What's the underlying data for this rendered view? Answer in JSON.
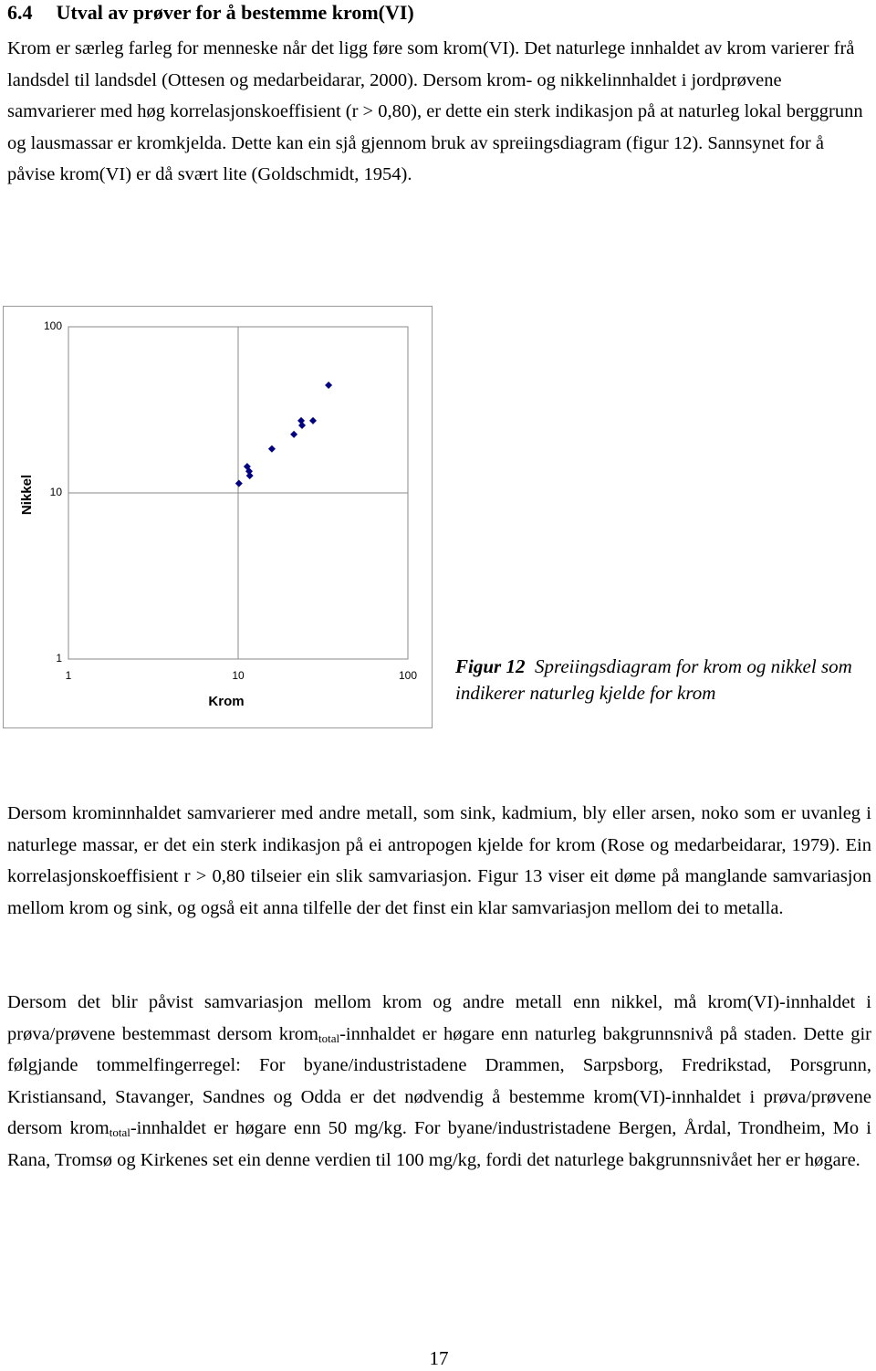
{
  "heading": {
    "number": "6.4",
    "title": "Utval av prøver for å bestemme krom(VI)"
  },
  "paragraphs": [
    [
      "Krom er særleg farleg for menneske når det ligg føre som krom(VI). Det naturlege innhaldet av krom varierer frå landsdel til landsdel (Ottesen og medarbeidarar, 2000). Dersom krom- og nikkelinnhaldet i jordprøvene samvarierer med høg korrelasjonskoeffisient (r > 0,80), er dette ein sterk indikasjon på at naturleg lokal berggrunn og lausmassar er kromkjelda. Dette kan ein sjå gjennom bruk av spreiingsdiagram (figur 12). Sannsynet for å påvise krom(VI) er då svært lite (Goldschmidt, 1954)."
    ],
    [
      "Dersom krominnhaldet samvarierer med andre metall, som sink, kadmium, bly eller arsen, noko som er uvanleg i naturlege massar, er det ein sterk indikasjon på ei antropogen kjelde for krom (Rose og medarbeidarar, 1979). Ein korrelasjonskoeffisient r > 0,80 tilseier ein slik samvariasjon. Figur 13 viser eit døme på manglande samvariasjon mellom krom og sink, og også eit anna tilfelle der det finst ein klar samvariasjon mellom dei to metalla."
    ],
    [
      "Dersom det blir påvist samvariasjon mellom krom og andre metall enn nikkel, må krom(VI)-innhaldet i prøva/prøvene bestemmast dersom krom",
      "total",
      "-innhaldet er høgare enn naturleg bakgrunnsnivå på staden. Dette gir følgjande tommelfingerregel: For byane/industristadene Drammen, Sarpsborg, Fredrikstad, Porsgrunn, Kristiansand, Stavanger, Sandnes og Odda er det nødvendig å bestemme krom(VI)-innhaldet i prøva/prøvene dersom krom",
      "total",
      "-innhaldet er høgare enn 50 mg/kg. For byane/industristadene Bergen, Årdal, Trondheim, Mo i Rana, Tromsø og Kirkenes set ein denne verdien til 100 mg/kg, fordi det naturlege bakgrunnsnivået her er høgare."
    ]
  ],
  "chart_data": {
    "type": "scatter",
    "x_label": "Krom",
    "y_label": "Nikkel",
    "log_x": true,
    "log_y": true,
    "grid": true,
    "xlim": [
      1,
      100
    ],
    "ylim": [
      1,
      100
    ],
    "xticks": [
      1,
      10,
      100
    ],
    "yticks": [
      1,
      10,
      100
    ],
    "color": "#000080",
    "x": [
      10.1,
      11.3,
      11.7,
      11.6,
      15.8,
      21.3,
      23.5,
      23.8,
      27.6,
      34.1
    ],
    "values": [
      11.4,
      14.4,
      12.7,
      13.5,
      18.4,
      22.5,
      27.2,
      25.5,
      27.2,
      44.5
    ]
  },
  "caption": {
    "label": "Figur 12",
    "text": "Spreiingsdiagram for krom og nikkel som indikerer naturleg kjelde for krom"
  },
  "page_number": "17"
}
